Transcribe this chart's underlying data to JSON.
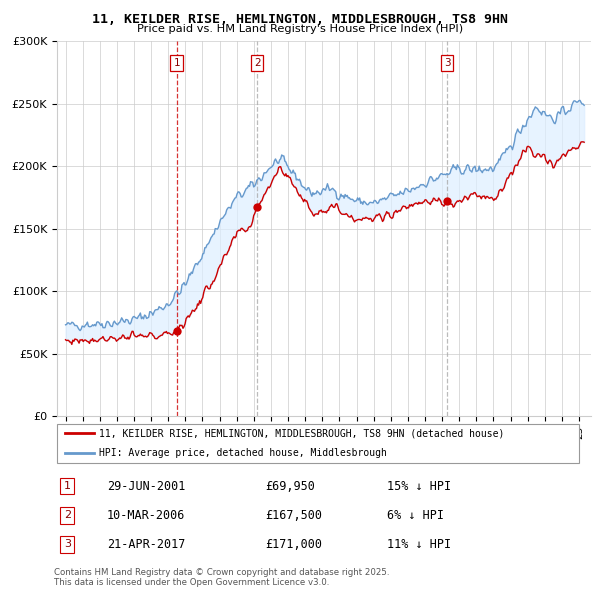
{
  "title": "11, KEILDER RISE, HEMLINGTON, MIDDLESBROUGH, TS8 9HN",
  "subtitle": "Price paid vs. HM Land Registry's House Price Index (HPI)",
  "ylim": [
    0,
    300000
  ],
  "yticks": [
    0,
    50000,
    100000,
    150000,
    200000,
    250000,
    300000
  ],
  "ytick_labels": [
    "£0",
    "£50K",
    "£100K",
    "£150K",
    "£200K",
    "£250K",
    "£300K"
  ],
  "xlim_start": 1994.5,
  "xlim_end": 2025.7,
  "line1_label": "11, KEILDER RISE, HEMLINGTON, MIDDLESBROUGH, TS8 9HN (detached house)",
  "line2_label": "HPI: Average price, detached house, Middlesbrough",
  "line1_color": "#cc0000",
  "line2_color": "#6699cc",
  "fill_color": "#ddeeff",
  "vline1_color": "#cc0000",
  "vline23_color": "#aaaaaa",
  "transactions": [
    {
      "num": 1,
      "date": "29-JUN-2001",
      "date_x": 2001.49,
      "price": 69950,
      "pct": "15%",
      "direction": "↓"
    },
    {
      "num": 2,
      "date": "10-MAR-2006",
      "date_x": 2006.19,
      "price": 167500,
      "pct": "6%",
      "direction": "↓"
    },
    {
      "num": 3,
      "date": "21-APR-2017",
      "date_x": 2017.3,
      "price": 171000,
      "pct": "11%",
      "direction": "↓"
    }
  ],
  "footer1": "Contains HM Land Registry data © Crown copyright and database right 2025.",
  "footer2": "This data is licensed under the Open Government Licence v3.0.",
  "hpi_anchors": [
    [
      1995.0,
      72000
    ],
    [
      1996.0,
      73500
    ],
    [
      1997.0,
      74000
    ],
    [
      1998.0,
      75000
    ],
    [
      1999.0,
      77000
    ],
    [
      2000.0,
      82000
    ],
    [
      2001.0,
      90000
    ],
    [
      2002.0,
      105000
    ],
    [
      2003.0,
      130000
    ],
    [
      2004.0,
      155000
    ],
    [
      2005.0,
      175000
    ],
    [
      2006.0,
      185000
    ],
    [
      2007.0,
      200000
    ],
    [
      2007.5,
      205000
    ],
    [
      2008.5,
      192000
    ],
    [
      2009.0,
      182000
    ],
    [
      2009.5,
      178000
    ],
    [
      2010.5,
      182000
    ],
    [
      2011.0,
      178000
    ],
    [
      2012.0,
      172000
    ],
    [
      2013.0,
      170000
    ],
    [
      2014.0,
      175000
    ],
    [
      2015.0,
      180000
    ],
    [
      2016.0,
      187000
    ],
    [
      2017.0,
      192000
    ],
    [
      2018.0,
      198000
    ],
    [
      2019.0,
      197000
    ],
    [
      2020.0,
      198000
    ],
    [
      2020.5,
      205000
    ],
    [
      2021.5,
      228000
    ],
    [
      2022.5,
      248000
    ],
    [
      2023.0,
      242000
    ],
    [
      2023.5,
      238000
    ],
    [
      2024.0,
      242000
    ],
    [
      2024.5,
      248000
    ],
    [
      2025.3,
      253000
    ]
  ],
  "price_anchors": [
    [
      1995.0,
      60000
    ],
    [
      1996.0,
      61000
    ],
    [
      1997.0,
      62000
    ],
    [
      1998.0,
      62500
    ],
    [
      1999.0,
      63000
    ],
    [
      2000.0,
      64000
    ],
    [
      2001.0,
      65000
    ],
    [
      2001.49,
      69950
    ],
    [
      2002.0,
      75000
    ],
    [
      2003.0,
      95000
    ],
    [
      2004.0,
      118000
    ],
    [
      2005.0,
      145000
    ],
    [
      2005.8,
      152000
    ],
    [
      2006.19,
      167500
    ],
    [
      2006.5,
      175000
    ],
    [
      2007.0,
      188000
    ],
    [
      2007.5,
      198000
    ],
    [
      2008.0,
      192000
    ],
    [
      2008.5,
      182000
    ],
    [
      2009.0,
      170000
    ],
    [
      2009.5,
      163000
    ],
    [
      2010.0,
      165000
    ],
    [
      2010.5,
      168000
    ],
    [
      2011.0,
      165000
    ],
    [
      2012.0,
      158000
    ],
    [
      2013.0,
      157000
    ],
    [
      2014.0,
      162000
    ],
    [
      2015.0,
      168000
    ],
    [
      2016.0,
      173000
    ],
    [
      2017.0,
      170000
    ],
    [
      2017.3,
      171000
    ],
    [
      2017.5,
      168000
    ],
    [
      2018.0,
      172000
    ],
    [
      2018.5,
      175000
    ],
    [
      2019.0,
      177000
    ],
    [
      2019.5,
      175000
    ],
    [
      2020.0,
      175000
    ],
    [
      2020.5,
      180000
    ],
    [
      2021.0,
      192000
    ],
    [
      2021.5,
      205000
    ],
    [
      2022.0,
      215000
    ],
    [
      2022.5,
      212000
    ],
    [
      2023.0,
      205000
    ],
    [
      2023.5,
      202000
    ],
    [
      2024.0,
      207000
    ],
    [
      2024.5,
      212000
    ],
    [
      2025.3,
      218000
    ]
  ]
}
